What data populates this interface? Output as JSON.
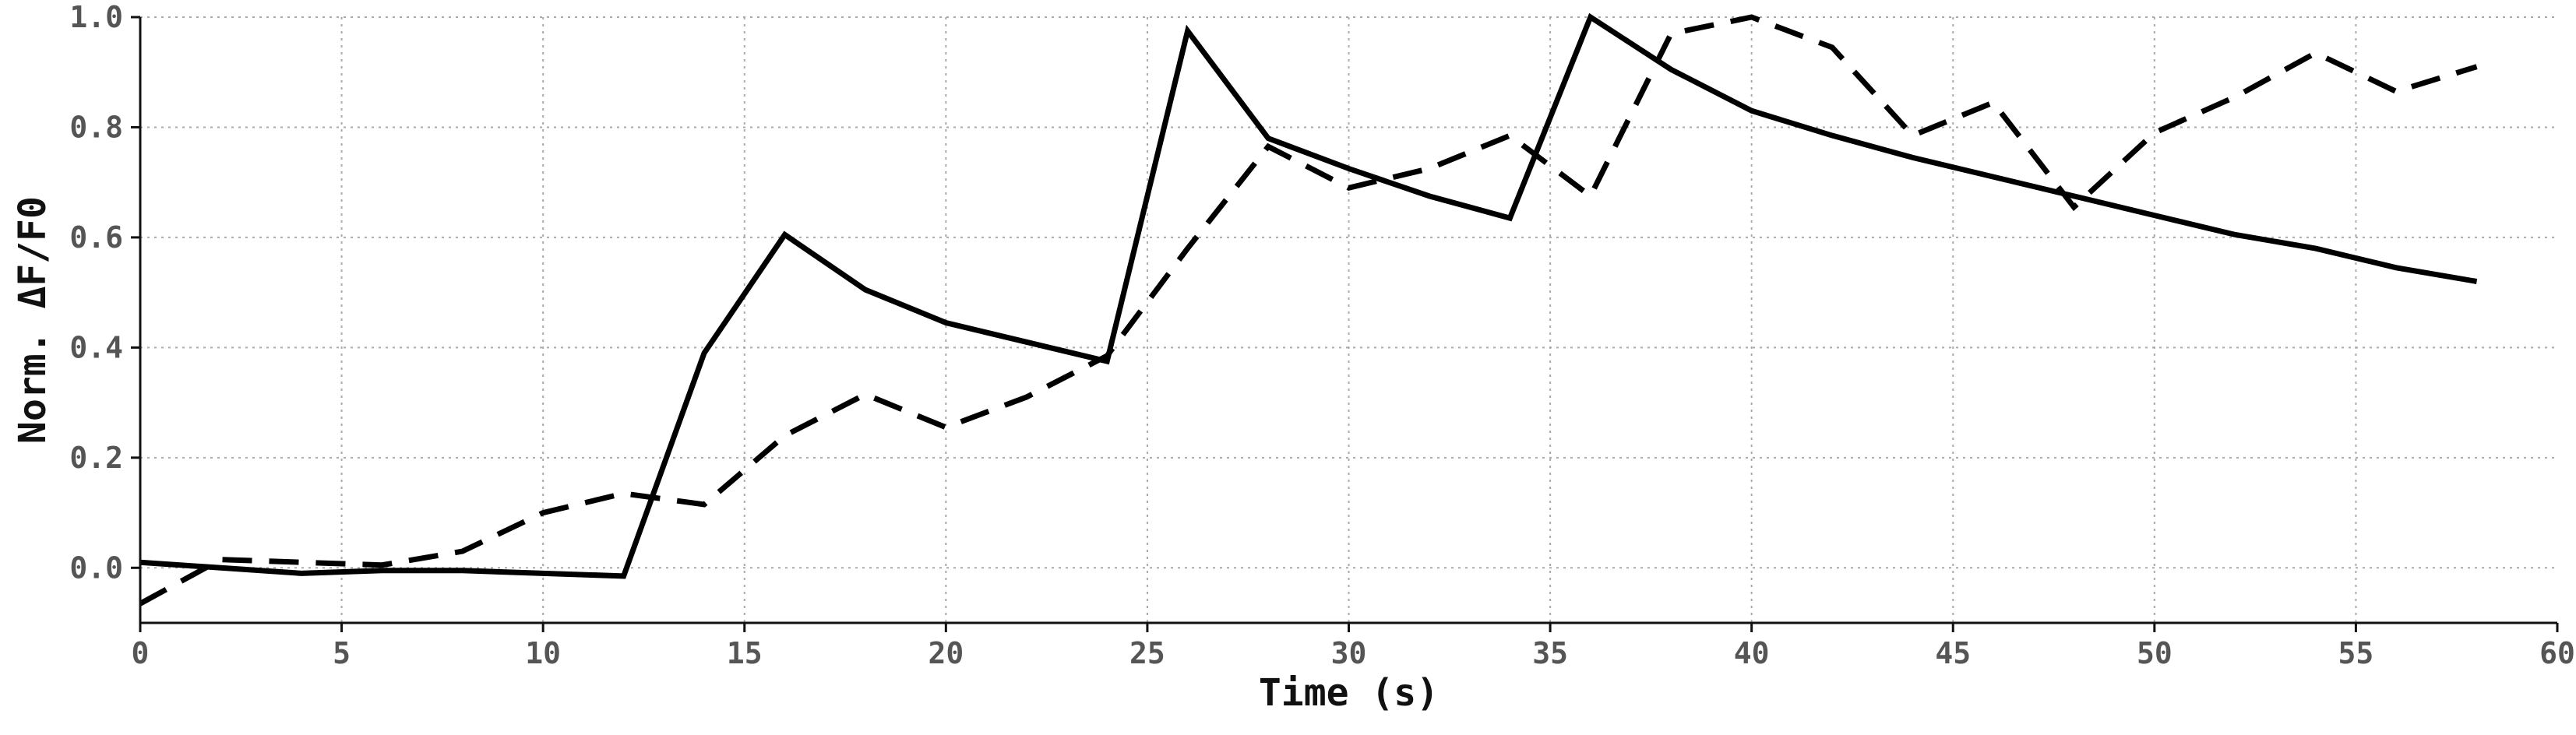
{
  "chart_data": {
    "type": "line",
    "title": "",
    "xlabel": "Time (s)",
    "ylabel": "Norm. ΔF/F0",
    "xlim": [
      0,
      60
    ],
    "ylim": [
      -0.1,
      1.0
    ],
    "xticks": [
      0,
      5,
      10,
      15,
      20,
      25,
      30,
      35,
      40,
      45,
      50,
      55,
      60
    ],
    "yticks": [
      0.0,
      0.2,
      0.4,
      0.6,
      0.8,
      1.0
    ],
    "ytick_labels": [
      "0.0",
      "0.2",
      "0.4",
      "0.6",
      "0.8",
      "1.0"
    ],
    "grid": true,
    "series": [
      {
        "style": "solid",
        "color": "#000000",
        "x": [
          0,
          2,
          4,
          6,
          8,
          10,
          12,
          14,
          16,
          18,
          20,
          22,
          24,
          26,
          28,
          30,
          32,
          34,
          36,
          38,
          40,
          42,
          44,
          46,
          48,
          50,
          52,
          54,
          56,
          58
        ],
        "y": [
          0.01,
          0.0,
          -0.01,
          -0.005,
          -0.005,
          -0.01,
          -0.015,
          0.39,
          0.605,
          0.505,
          0.445,
          0.41,
          0.375,
          0.975,
          0.78,
          0.725,
          0.675,
          0.635,
          1.0,
          0.905,
          0.83,
          0.785,
          0.745,
          0.71,
          0.675,
          0.64,
          0.605,
          0.58,
          0.545,
          0.52
        ]
      },
      {
        "style": "dashed",
        "color": "#000000",
        "x": [
          0,
          2,
          4,
          6,
          8,
          10,
          12,
          14,
          16,
          18,
          20,
          22,
          24,
          26,
          28,
          30,
          32,
          34,
          36,
          38,
          40,
          42,
          44,
          46,
          48,
          50,
          52,
          54,
          56,
          58
        ],
        "y": [
          -0.065,
          0.015,
          0.01,
          0.005,
          0.03,
          0.1,
          0.135,
          0.115,
          0.24,
          0.315,
          0.255,
          0.31,
          0.385,
          0.58,
          0.765,
          0.69,
          0.725,
          0.785,
          0.675,
          0.97,
          1.0,
          0.945,
          0.785,
          0.845,
          0.655,
          0.79,
          0.855,
          0.935,
          0.865,
          0.91
        ]
      }
    ]
  }
}
